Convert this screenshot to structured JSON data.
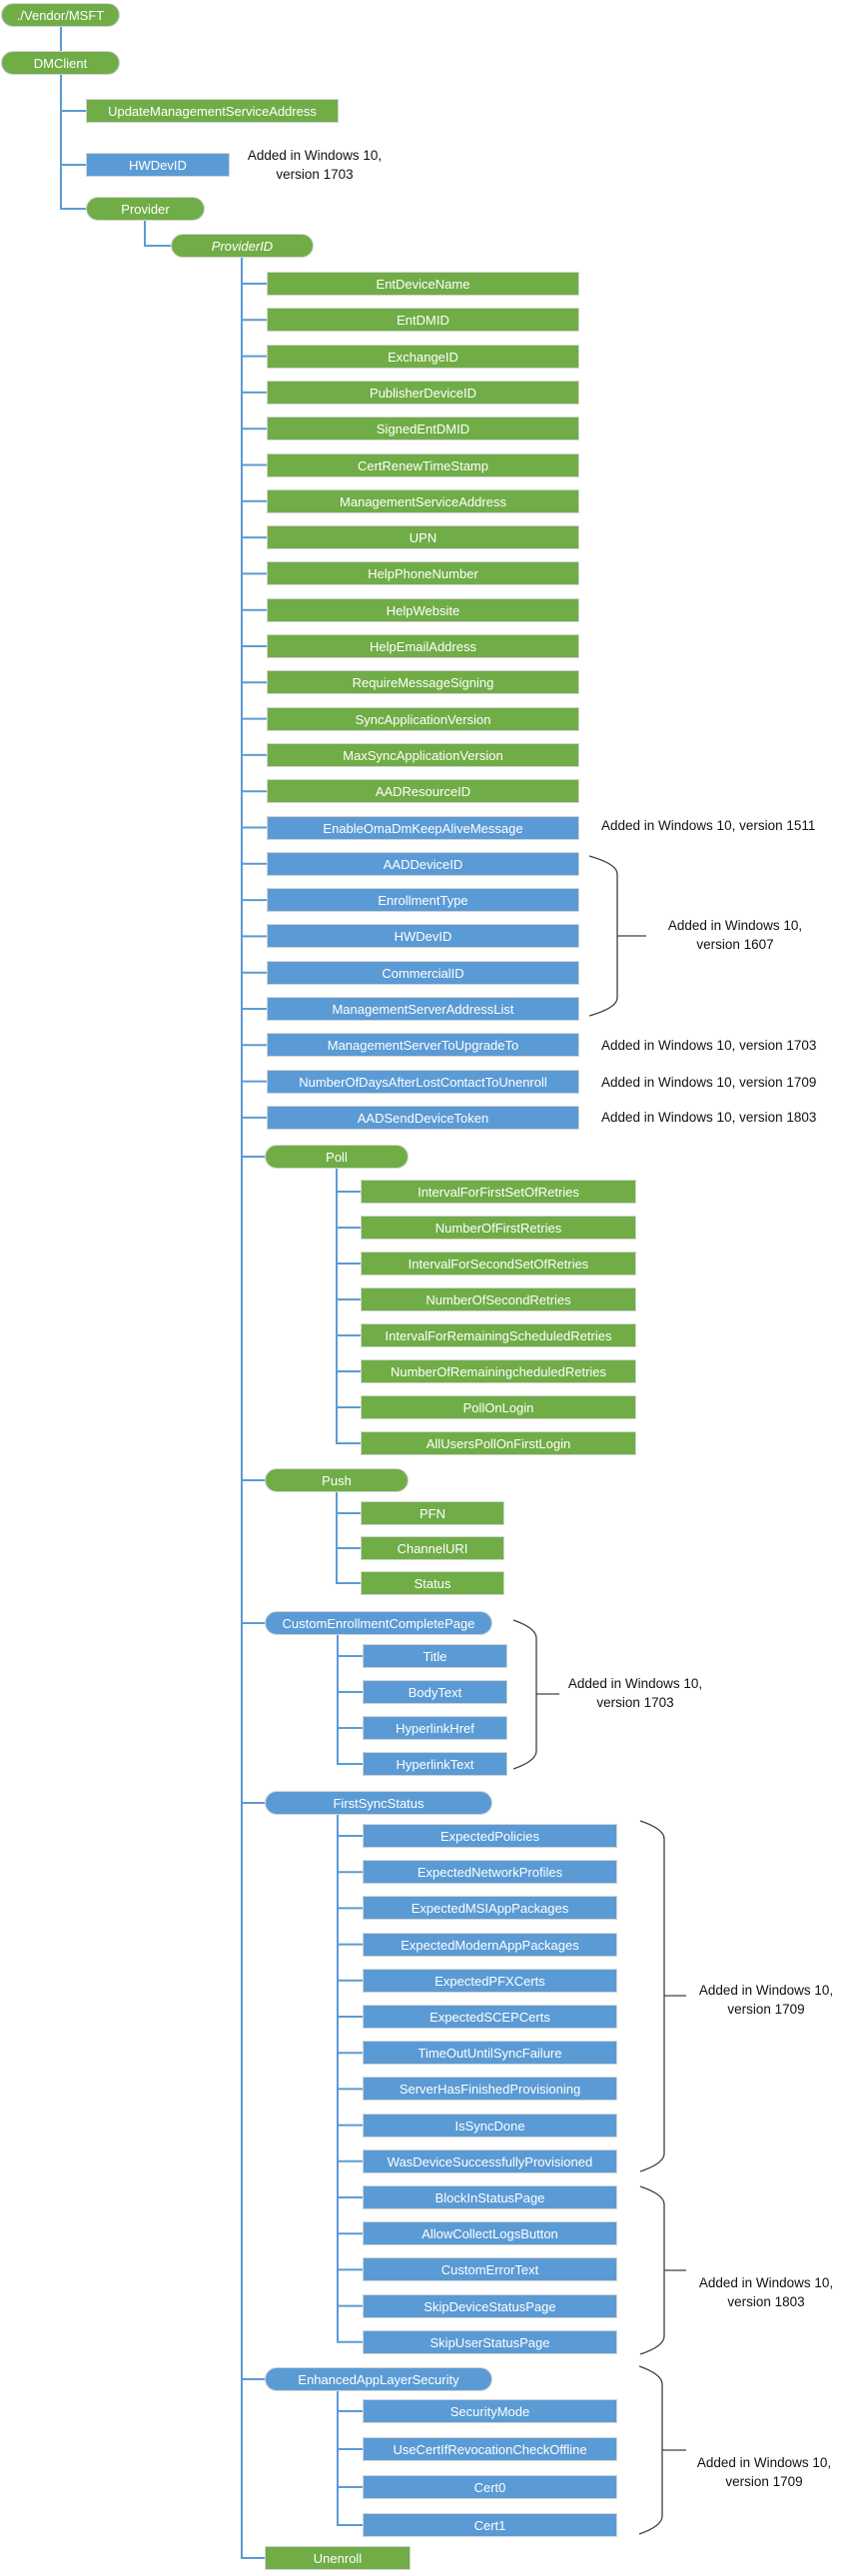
{
  "colors": {
    "green": "#70ad47",
    "blue": "#5b9bd5",
    "connector": "#5b9bd5",
    "bracket": "#404040"
  },
  "nodes": [
    {
      "label": "./Vendor/MSFT",
      "color": "green",
      "shape": "pill"
    },
    {
      "label": "DMClient",
      "color": "green",
      "shape": "pill"
    },
    {
      "label": "UpdateManagementServiceAddress",
      "color": "green",
      "shape": "rect"
    },
    {
      "label": "HWDevID",
      "color": "blue",
      "shape": "rect"
    },
    {
      "label": "Provider",
      "color": "green",
      "shape": "pill"
    },
    {
      "label": "ProviderID",
      "color": "green",
      "shape": "pill",
      "italic": true
    },
    {
      "label": "EntDeviceName",
      "color": "green",
      "shape": "rect"
    },
    {
      "label": "EntDMID",
      "color": "green",
      "shape": "rect"
    },
    {
      "label": "ExchangeID",
      "color": "green",
      "shape": "rect"
    },
    {
      "label": "PublisherDeviceID",
      "color": "green",
      "shape": "rect"
    },
    {
      "label": "SignedEntDMID",
      "color": "green",
      "shape": "rect"
    },
    {
      "label": "CertRenewTimeStamp",
      "color": "green",
      "shape": "rect"
    },
    {
      "label": "ManagementServiceAddress",
      "color": "green",
      "shape": "rect"
    },
    {
      "label": "UPN",
      "color": "green",
      "shape": "rect"
    },
    {
      "label": "HelpPhoneNumber",
      "color": "green",
      "shape": "rect"
    },
    {
      "label": "HelpWebsite",
      "color": "green",
      "shape": "rect"
    },
    {
      "label": "HelpEmailAddress",
      "color": "green",
      "shape": "rect"
    },
    {
      "label": "RequireMessageSigning",
      "color": "green",
      "shape": "rect"
    },
    {
      "label": "SyncApplicationVersion",
      "color": "green",
      "shape": "rect"
    },
    {
      "label": "MaxSyncApplicationVersion",
      "color": "green",
      "shape": "rect"
    },
    {
      "label": "AADResourceID",
      "color": "green",
      "shape": "rect"
    },
    {
      "label": "EnableOmaDmKeepAliveMessage",
      "color": "blue",
      "shape": "rect"
    },
    {
      "label": "AADDeviceID",
      "color": "blue",
      "shape": "rect"
    },
    {
      "label": "EnrollmentType",
      "color": "blue",
      "shape": "rect"
    },
    {
      "label": "HWDevID",
      "color": "blue",
      "shape": "rect"
    },
    {
      "label": "CommercialID",
      "color": "blue",
      "shape": "rect"
    },
    {
      "label": "ManagementServerAddressList",
      "color": "blue",
      "shape": "rect"
    },
    {
      "label": "ManagementServerToUpgradeTo",
      "color": "blue",
      "shape": "rect"
    },
    {
      "label": "NumberOfDaysAfterLostContactToUnenroll",
      "color": "blue",
      "shape": "rect"
    },
    {
      "label": "AADSendDeviceToken",
      "color": "blue",
      "shape": "rect"
    },
    {
      "label": "Poll",
      "color": "green",
      "shape": "pill"
    },
    {
      "label": "IntervalForFirstSetOfRetries",
      "color": "green",
      "shape": "rect"
    },
    {
      "label": "NumberOfFirstRetries",
      "color": "green",
      "shape": "rect"
    },
    {
      "label": "IntervalForSecondSetOfRetries",
      "color": "green",
      "shape": "rect"
    },
    {
      "label": "NumberOfSecondRetries",
      "color": "green",
      "shape": "rect"
    },
    {
      "label": "IntervalForRemainingScheduledRetries",
      "color": "green",
      "shape": "rect"
    },
    {
      "label": "NumberOfRemainingcheduledRetries",
      "color": "green",
      "shape": "rect"
    },
    {
      "label": "PollOnLogin",
      "color": "green",
      "shape": "rect"
    },
    {
      "label": "AllUsersPollOnFirstLogin",
      "color": "green",
      "shape": "rect"
    },
    {
      "label": "Push",
      "color": "green",
      "shape": "pill"
    },
    {
      "label": "PFN",
      "color": "green",
      "shape": "rect"
    },
    {
      "label": "ChannelURI",
      "color": "green",
      "shape": "rect"
    },
    {
      "label": "Status",
      "color": "green",
      "shape": "rect"
    },
    {
      "label": "CustomEnrollmentCompletePage",
      "color": "blue",
      "shape": "pill"
    },
    {
      "label": "Title",
      "color": "blue",
      "shape": "rect"
    },
    {
      "label": "BodyText",
      "color": "blue",
      "shape": "rect"
    },
    {
      "label": "HyperlinkHref",
      "color": "blue",
      "shape": "rect"
    },
    {
      "label": "HyperlinkText",
      "color": "blue",
      "shape": "rect"
    },
    {
      "label": "FirstSyncStatus",
      "color": "blue",
      "shape": "pill"
    },
    {
      "label": "ExpectedPolicies",
      "color": "blue",
      "shape": "rect"
    },
    {
      "label": "ExpectedNetworkProfiles",
      "color": "blue",
      "shape": "rect"
    },
    {
      "label": "ExpectedMSIAppPackages",
      "color": "blue",
      "shape": "rect"
    },
    {
      "label": "ExpectedModernAppPackages",
      "color": "blue",
      "shape": "rect"
    },
    {
      "label": "ExpectedPFXCerts",
      "color": "blue",
      "shape": "rect"
    },
    {
      "label": "ExpectedSCEPCerts",
      "color": "blue",
      "shape": "rect"
    },
    {
      "label": "TimeOutUntilSyncFailure",
      "color": "blue",
      "shape": "rect"
    },
    {
      "label": "ServerHasFinishedProvisioning",
      "color": "blue",
      "shape": "rect"
    },
    {
      "label": "IsSyncDone",
      "color": "blue",
      "shape": "rect"
    },
    {
      "label": "WasDeviceSuccessfullyProvisioned",
      "color": "blue",
      "shape": "rect"
    },
    {
      "label": "BlockInStatusPage",
      "color": "blue",
      "shape": "rect"
    },
    {
      "label": "AllowCollectLogsButton",
      "color": "blue",
      "shape": "rect"
    },
    {
      "label": "CustomErrorText",
      "color": "blue",
      "shape": "rect"
    },
    {
      "label": "SkipDeviceStatusPage",
      "color": "blue",
      "shape": "rect"
    },
    {
      "label": "SkipUserStatusPage",
      "color": "blue",
      "shape": "rect"
    },
    {
      "label": "EnhancedAppLayerSecurity",
      "color": "blue",
      "shape": "pill"
    },
    {
      "label": "SecurityMode",
      "color": "blue",
      "shape": "rect"
    },
    {
      "label": "UseCertIfRevocationCheckOffline",
      "color": "blue",
      "shape": "rect"
    },
    {
      "label": "Cert0",
      "color": "blue",
      "shape": "rect"
    },
    {
      "label": "Cert1",
      "color": "blue",
      "shape": "rect"
    },
    {
      "label": "Unenroll",
      "color": "green",
      "shape": "rect"
    }
  ],
  "annotations": [
    {
      "lines": [
        "Added in Windows 10,",
        "version 1703"
      ]
    },
    {
      "lines": [
        "Added in Windows 10, version 1511"
      ]
    },
    {
      "lines": [
        "Added in Windows 10,",
        "version 1607"
      ]
    },
    {
      "lines": [
        "Added in Windows 10, version 1703"
      ]
    },
    {
      "lines": [
        "Added in Windows 10, version 1709"
      ]
    },
    {
      "lines": [
        "Added in Windows 10, version 1803"
      ]
    },
    {
      "lines": [
        "Added in Windows 10,",
        "version 1703"
      ]
    },
    {
      "lines": [
        "Added in Windows 10,",
        "version 1709"
      ]
    },
    {
      "lines": [
        "Added in Windows 10,",
        "version 1803"
      ]
    },
    {
      "lines": [
        "Added in Windows 10,",
        "version 1709"
      ]
    }
  ]
}
